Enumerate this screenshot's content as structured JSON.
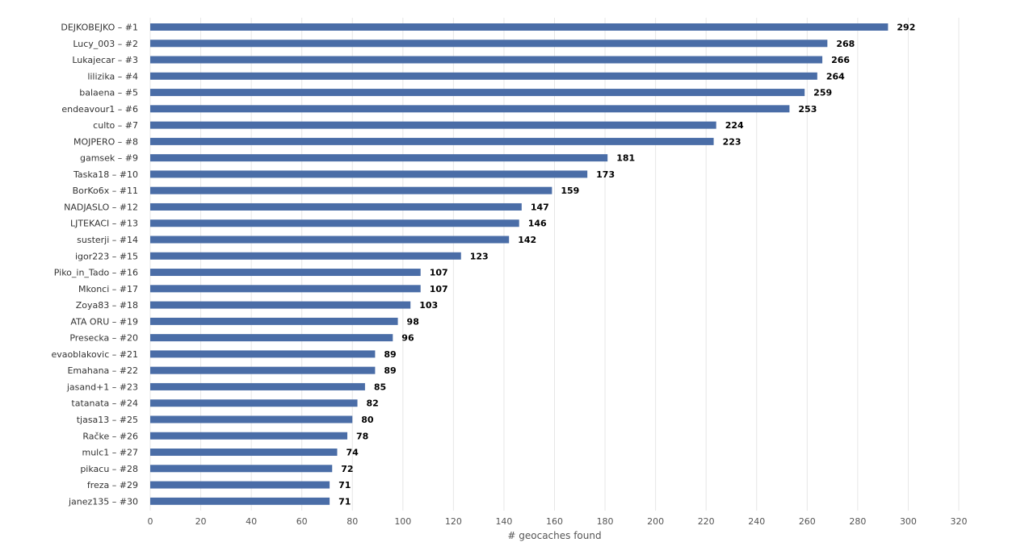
{
  "chart_data": {
    "type": "bar",
    "orientation": "horizontal",
    "categories": [
      "DEJKOBEJKO – #1",
      "Lucy_003 – #2",
      "Lukajecar – #3",
      "lilizika – #4",
      "balaena – #5",
      "endeavour1 – #6",
      "culto – #7",
      "MOJPERO – #8",
      "gamsek – #9",
      "Taska18 – #10",
      "BorKo6x – #11",
      "NADJASLO – #12",
      "LJTEKACI – #13",
      "susterji – #14",
      "igor223 – #15",
      "Piko_in_Tado – #16",
      "Mkonci – #17",
      "Zoya83 – #18",
      "ATA ORU – #19",
      "Presecka – #20",
      "evaoblakovic – #21",
      "Emahana – #22",
      "jasand+1 – #23",
      "tatanata – #24",
      "tjasa13 – #25",
      "Račke – #26",
      "mulc1 – #27",
      "pikacu – #28",
      "freza – #29",
      "janez135 – #30"
    ],
    "values": [
      292,
      268,
      266,
      264,
      259,
      253,
      224,
      223,
      181,
      173,
      159,
      147,
      146,
      142,
      123,
      107,
      107,
      103,
      98,
      96,
      89,
      89,
      85,
      82,
      80,
      78,
      74,
      72,
      71,
      71
    ],
    "xlabel": "# geocaches found",
    "ylabel": "",
    "title": "",
    "xlim": [
      0,
      320
    ],
    "xticks": [
      0,
      20,
      40,
      60,
      80,
      100,
      120,
      140,
      160,
      180,
      200,
      220,
      240,
      260,
      280,
      300,
      320
    ],
    "grid": true,
    "bar_color": "#4a6da7"
  }
}
